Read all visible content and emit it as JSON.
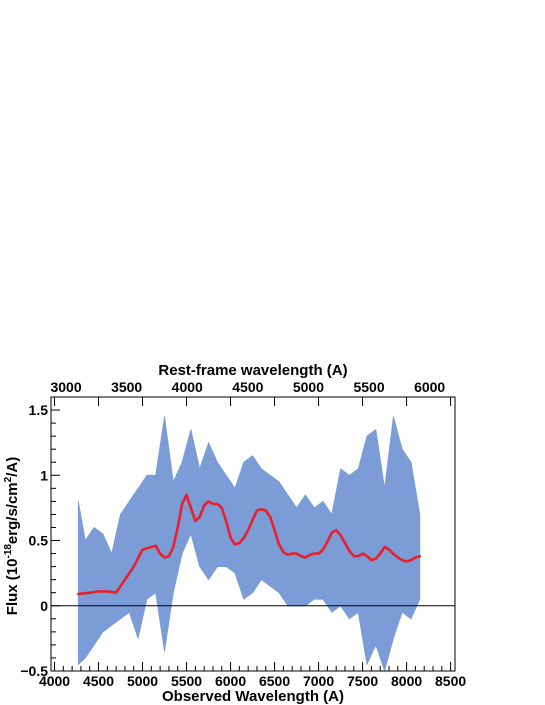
{
  "chart_data": {
    "type": "line",
    "title": "",
    "xlabel": "Observed Wavelength (A)",
    "x2label": "Rest-frame wavelength (A)",
    "ylabel": "Flux (10^-18 erg/s/cm^2/A)",
    "ylabel_parts": {
      "main": "Flux (10",
      "exp": "-18",
      "mid": "erg/s/cm",
      "exp2": "2",
      "end": "/A)"
    },
    "xlim": [
      3960,
      8550
    ],
    "ylim": [
      -0.5,
      1.6
    ],
    "x_ticks": [
      4000,
      4500,
      5000,
      5500,
      6000,
      6500,
      7000,
      7500,
      8000,
      8500
    ],
    "x_tick_labels": [
      "4000",
      "4500",
      "5000",
      "5500",
      "6000",
      "6500",
      "7000",
      "7500",
      "8000",
      "8500"
    ],
    "y_ticks": [
      -0.5,
      0,
      0.5,
      1,
      1.5
    ],
    "y_tick_labels": [
      "−0.5",
      "0",
      "0.5",
      "1",
      "1.5"
    ],
    "x2_ticks": [
      3000,
      3500,
      4000,
      4500,
      5000,
      5500,
      6000
    ],
    "x2_tick_labels": [
      "3000",
      "3500",
      "4000",
      "4500",
      "5000",
      "5500",
      "6000"
    ],
    "x2_scale_observed_per_rest": 1.377,
    "zero_line": 0,
    "colors": {
      "spectrum": "#7b9cd6",
      "smoothed": "#e8202a",
      "axis": "#000000"
    },
    "series": [
      {
        "name": "spectrum",
        "style": "filled-band",
        "x": [
          4270,
          4350,
          4450,
          4550,
          4650,
          4750,
          4850,
          4950,
          5050,
          5150,
          5250,
          5350,
          5450,
          5550,
          5650,
          5750,
          5850,
          5950,
          6050,
          6150,
          6250,
          6350,
          6450,
          6550,
          6650,
          6750,
          6850,
          6950,
          7050,
          7150,
          7250,
          7350,
          7450,
          7550,
          7650,
          7750,
          7850,
          7950,
          8050,
          8150
        ],
        "upper": [
          0.8,
          0.5,
          0.6,
          0.55,
          0.4,
          0.7,
          0.8,
          0.9,
          1.0,
          1.0,
          1.45,
          0.95,
          1.1,
          1.35,
          1.05,
          1.25,
          1.1,
          1.0,
          0.9,
          1.1,
          1.15,
          1.05,
          1.0,
          0.95,
          0.85,
          0.75,
          0.85,
          0.75,
          0.8,
          0.7,
          1.05,
          1.0,
          1.05,
          1.3,
          1.35,
          0.9,
          1.45,
          1.2,
          1.1,
          0.7
        ],
        "lower": [
          -0.45,
          -0.4,
          -0.3,
          -0.2,
          -0.15,
          -0.1,
          -0.05,
          -0.25,
          0.05,
          0.1,
          -0.35,
          0.1,
          0.4,
          0.55,
          0.3,
          0.2,
          0.3,
          0.3,
          0.25,
          0.05,
          0.1,
          0.2,
          0.15,
          0.1,
          0.0,
          0.0,
          0.0,
          0.05,
          0.05,
          -0.05,
          0.0,
          -0.1,
          -0.05,
          -0.45,
          -0.3,
          -0.5,
          -0.25,
          -0.05,
          -0.1,
          0.05
        ]
      },
      {
        "name": "smoothed",
        "style": "line",
        "x": [
          4270,
          4400,
          4500,
          4600,
          4700,
          4800,
          4900,
          5000,
          5100,
          5150,
          5200,
          5250,
          5300,
          5350,
          5400,
          5450,
          5500,
          5550,
          5600,
          5650,
          5700,
          5750,
          5800,
          5850,
          5900,
          5950,
          6000,
          6050,
          6100,
          6150,
          6200,
          6250,
          6300,
          6350,
          6400,
          6450,
          6500,
          6550,
          6600,
          6650,
          6700,
          6750,
          6800,
          6850,
          6900,
          6950,
          7000,
          7050,
          7100,
          7150,
          7200,
          7250,
          7300,
          7350,
          7400,
          7450,
          7500,
          7550,
          7600,
          7650,
          7700,
          7750,
          7800,
          7850,
          7900,
          7950,
          8000,
          8050,
          8100,
          8150
        ],
        "y": [
          0.09,
          0.1,
          0.11,
          0.11,
          0.1,
          0.2,
          0.3,
          0.43,
          0.45,
          0.46,
          0.4,
          0.37,
          0.38,
          0.45,
          0.6,
          0.78,
          0.85,
          0.75,
          0.65,
          0.68,
          0.77,
          0.8,
          0.78,
          0.78,
          0.75,
          0.65,
          0.52,
          0.47,
          0.48,
          0.52,
          0.58,
          0.66,
          0.73,
          0.74,
          0.73,
          0.68,
          0.58,
          0.47,
          0.41,
          0.39,
          0.4,
          0.4,
          0.38,
          0.37,
          0.39,
          0.4,
          0.4,
          0.43,
          0.49,
          0.56,
          0.58,
          0.54,
          0.48,
          0.42,
          0.38,
          0.38,
          0.4,
          0.38,
          0.35,
          0.36,
          0.4,
          0.45,
          0.43,
          0.4,
          0.37,
          0.35,
          0.34,
          0.35,
          0.37,
          0.38
        ]
      }
    ]
  }
}
